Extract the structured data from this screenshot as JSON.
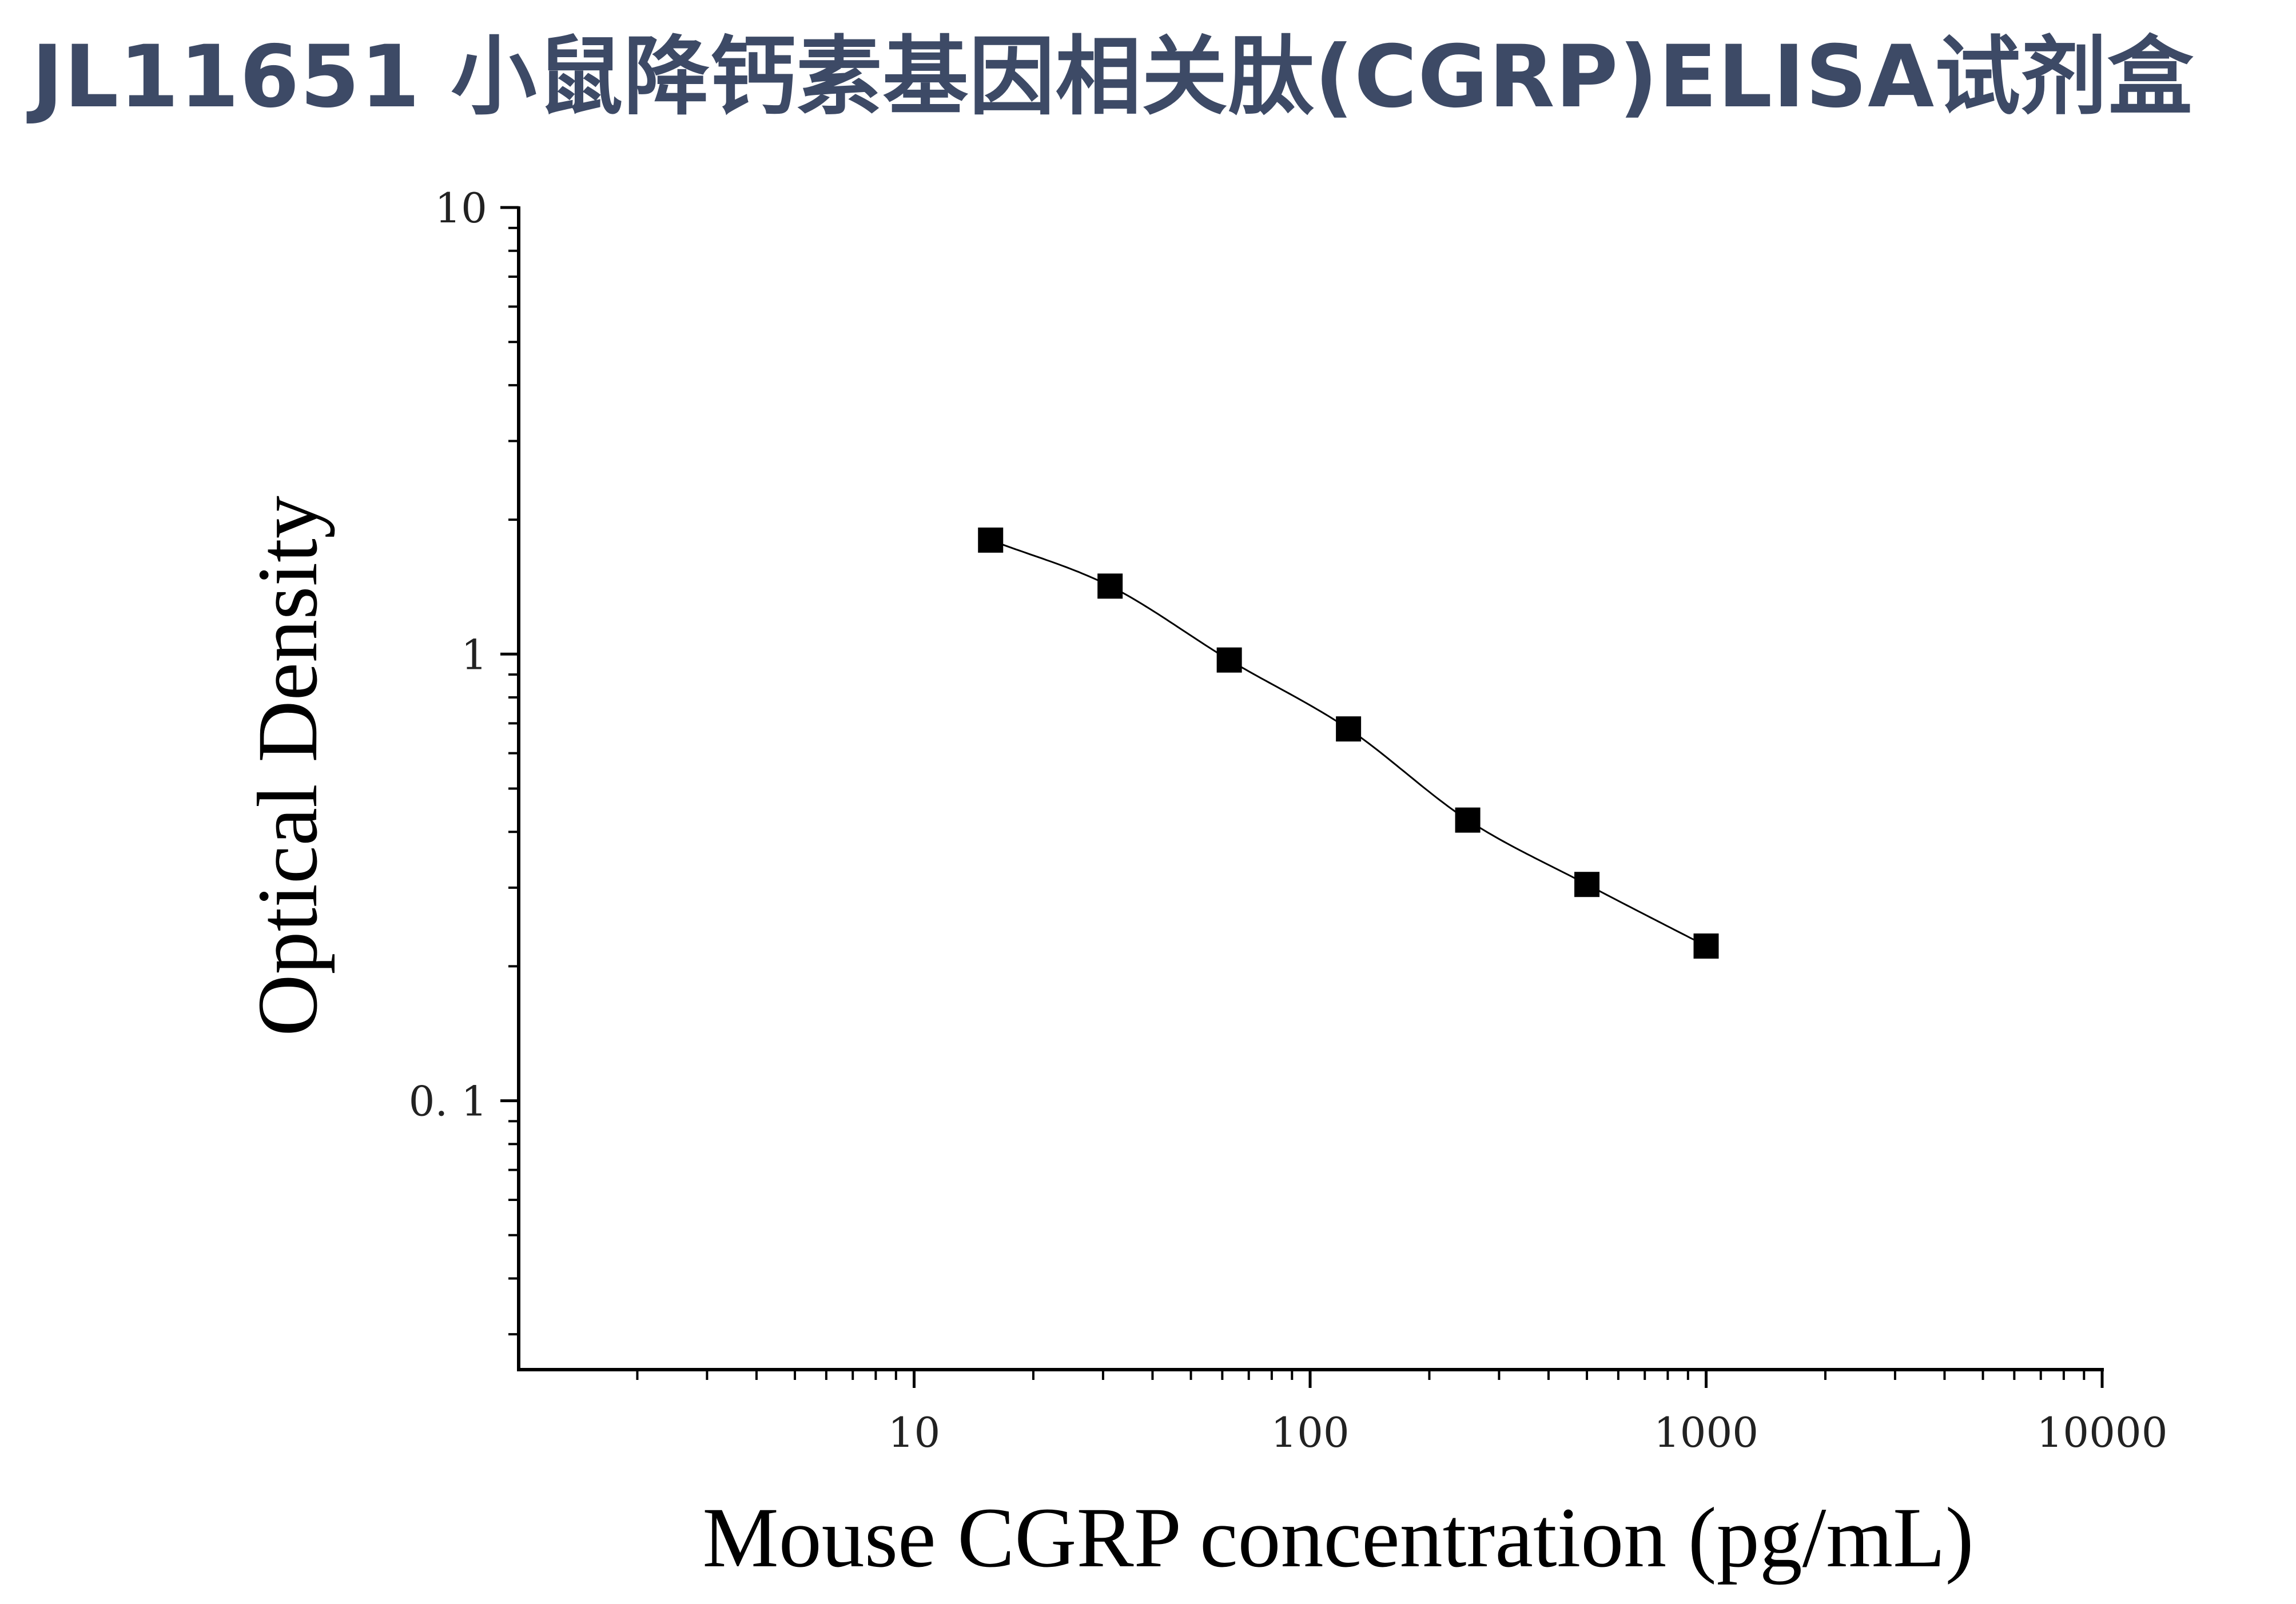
{
  "page": {
    "title": "JL11651 小鼠降钙素基因相关肽(CGRP)ELISA试剂盒"
  },
  "chart_data": {
    "type": "scatter",
    "xlabel": "Mouse CGRP concentration (pg/mL)",
    "ylabel": "Optical Density",
    "x_scale": "log",
    "y_scale": "log",
    "xlim": [
      1,
      10000
    ],
    "ylim": [
      0.025,
      10
    ],
    "x_tick_labels": [
      "10",
      "100",
      "1000",
      "10000"
    ],
    "y_tick_labels": [
      "10",
      "1",
      "0. 1"
    ],
    "grid": false,
    "marker": "square",
    "fit_line": "4-parameter logistic curve",
    "series": [
      {
        "x": [
          15.6,
          31.25,
          62.5,
          125,
          250,
          500,
          1000
        ],
        "y": [
          1.8,
          1.42,
          0.97,
          0.68,
          0.425,
          0.305,
          0.222
        ]
      }
    ],
    "colors": {
      "title": "#3d4a66",
      "markers": "#000000",
      "curve": "#000000",
      "axes": "#000000"
    }
  }
}
